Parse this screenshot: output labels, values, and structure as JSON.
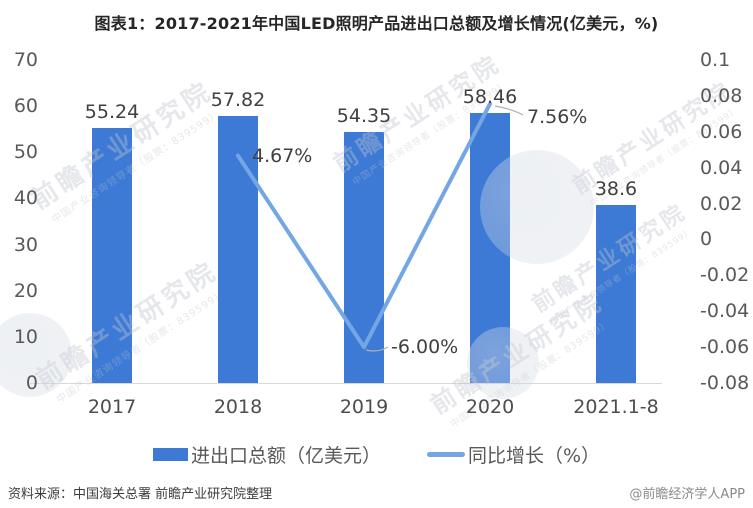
{
  "title": "图表1：2017-2021年中国LED照明产品进出口总额及增长情况(亿美元，%)",
  "chart_data": {
    "type": "combo-bar-line",
    "categories": [
      "2017",
      "2018",
      "2019",
      "2020",
      "2021.1-8"
    ],
    "series": [
      {
        "name": "进出口总额（亿美元）",
        "type": "bar",
        "axis": "left",
        "color": "#3c7ad6",
        "values": [
          55.24,
          57.82,
          54.35,
          58.46,
          38.6
        ],
        "labels": [
          "55.24",
          "57.82",
          "54.35",
          "58.46",
          "38.6"
        ]
      },
      {
        "name": "同比增长（%）",
        "type": "line",
        "axis": "right",
        "color": "#74a6e4",
        "values": [
          null,
          0.0467,
          -0.06,
          0.0756,
          null
        ],
        "labels": [
          null,
          "4.67%",
          "-6.00%",
          "7.56%",
          null
        ]
      }
    ],
    "left_axis": {
      "min": 0,
      "max": 70,
      "ticks": [
        "70",
        "60",
        "50",
        "40",
        "30",
        "20",
        "10",
        "0"
      ]
    },
    "right_axis": {
      "min": -0.08,
      "max": 0.1,
      "ticks": [
        "0.1",
        "0.08",
        "0.06",
        "0.04",
        "0.02",
        "0",
        "-0.02",
        "-0.04",
        "-0.06",
        "-0.08"
      ]
    },
    "gridlines": false,
    "legend_position": "bottom"
  },
  "legend": {
    "items": [
      {
        "label": "进出口总额（亿美元）",
        "swatch": "bar"
      },
      {
        "label": "同比增长（%）",
        "swatch": "line"
      }
    ]
  },
  "footer": {
    "source": "资料来源：中国海关总署 前瞻产业研究院整理",
    "credit": "@前瞻经济学人APP"
  },
  "watermark": {
    "text": "前瞻产业研究院",
    "subtext": "中国产业咨询领导者（股票：839599）"
  },
  "colors": {
    "bar": "#3c7ad6",
    "line": "#74a6e4",
    "axis_text": "#595959",
    "label_text": "#404040",
    "leader": "#b0b0b0",
    "baseline": "#d9d9d9"
  }
}
